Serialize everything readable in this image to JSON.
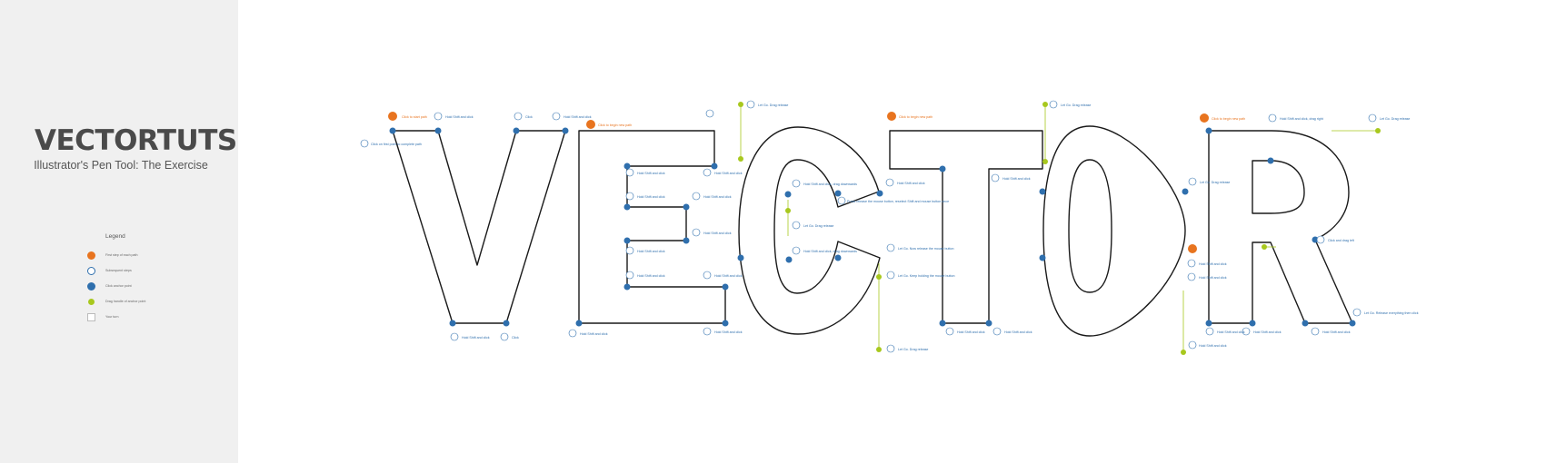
{
  "brand": {
    "title": "VECTORTUTS",
    "subtitle": "Illustrator's Pen Tool: The Exercise"
  },
  "legend": {
    "title": "Legend",
    "items": [
      {
        "label": "First step of each path",
        "marker": "orange-dot"
      },
      {
        "label": "Subsequent steps",
        "marker": "white-dot"
      },
      {
        "label": "Click anchor point",
        "marker": "blue-dot"
      },
      {
        "label": "Drag handle of anchor point",
        "marker": "green-dot"
      },
      {
        "label": "Your turn",
        "marker": "square"
      }
    ]
  },
  "colors": {
    "sidebar_bg": "#f0f0f0",
    "orange": "#e8741f",
    "blue": "#2f6fad",
    "green": "#a8c81e",
    "outline": "#1a1a1a",
    "note_text": "#2f6fad"
  },
  "artwork": {
    "word": "VECTOR",
    "annotations": [
      {
        "n": "1",
        "text": "Click to start path",
        "first": true
      },
      {
        "n": "2",
        "text": "Hold Shift and click"
      },
      {
        "n": "3",
        "text": "Click"
      },
      {
        "n": "4",
        "text": "Hold Shift and click"
      },
      {
        "n": "5",
        "text": "Click"
      },
      {
        "n": "6",
        "text": "Hold Shift and click"
      },
      {
        "n": "7",
        "text": "Click on first point to complete path"
      },
      {
        "n": "8",
        "text": "Click to begin new path",
        "first": true
      },
      {
        "n": "9",
        "text": "Hold Shift and click"
      },
      {
        "n": "10",
        "text": "Hold Shift and click"
      },
      {
        "n": "11",
        "text": "Hold Shift and click"
      },
      {
        "n": "12",
        "text": "Hold Shift and click"
      },
      {
        "n": "13",
        "text": "Hold Shift and click"
      },
      {
        "n": "14",
        "text": "Hold Shift and click"
      },
      {
        "n": "15",
        "text": "Hold Shift and click"
      },
      {
        "n": "16",
        "text": "Hold Shift and click"
      },
      {
        "n": "17",
        "text": "Hold Shift and click"
      },
      {
        "n": "18",
        "text": "Hold Shift and click"
      },
      {
        "n": "19",
        "text": "Hold Shift and click"
      },
      {
        "n": "20",
        "text": "Let Go. Drag release"
      },
      {
        "n": "21",
        "text": "Hold Shift and click, drag downwards"
      },
      {
        "n": "22",
        "text": "Press release the mouse button, reselect Shift and mouse button once"
      },
      {
        "n": "23",
        "text": "Let Go. Keep holding the mouse button"
      },
      {
        "n": "24",
        "text": "Let Go. Drag release"
      },
      {
        "n": "25",
        "text": "Hold Shift and click, drag downwards"
      },
      {
        "n": "26",
        "text": "Let Go. Now release the mouse button"
      },
      {
        "n": "27",
        "text": "Let Go. Keep holding the mouse button"
      },
      {
        "n": "28",
        "text": "Let Go. Drag release"
      },
      {
        "n": "29",
        "text": "Click to begin new path",
        "first": true
      },
      {
        "n": "30",
        "text": "Hold Shift and click"
      },
      {
        "n": "31",
        "text": "Hold Shift and click"
      },
      {
        "n": "32",
        "text": "Hold Shift and click"
      },
      {
        "n": "33",
        "text": "Hold Shift and click"
      },
      {
        "n": "34",
        "text": "Hold Shift and click"
      },
      {
        "n": "35",
        "text": "Let Go. Drag release"
      },
      {
        "n": "36",
        "text": "Let Go. Drag release"
      },
      {
        "n": "37",
        "text": "Hold Shift and click"
      },
      {
        "n": "38",
        "text": "Hold Shift and click"
      },
      {
        "n": "39",
        "text": "Click to begin new path",
        "first": true
      },
      {
        "n": "40",
        "text": "Hold Shift and click, drag right"
      },
      {
        "n": "41",
        "text": "Let Go. Drag release"
      },
      {
        "n": "42",
        "text": "Hold Shift and click"
      },
      {
        "n": "43",
        "text": "Click and drag left"
      },
      {
        "n": "44",
        "text": "Let Go. Release everything then click"
      },
      {
        "n": "45",
        "text": "Hold Shift and click"
      },
      {
        "n": "46",
        "text": "Hold Shift and click"
      },
      {
        "n": "47",
        "text": "Hold Shift and click"
      }
    ]
  }
}
